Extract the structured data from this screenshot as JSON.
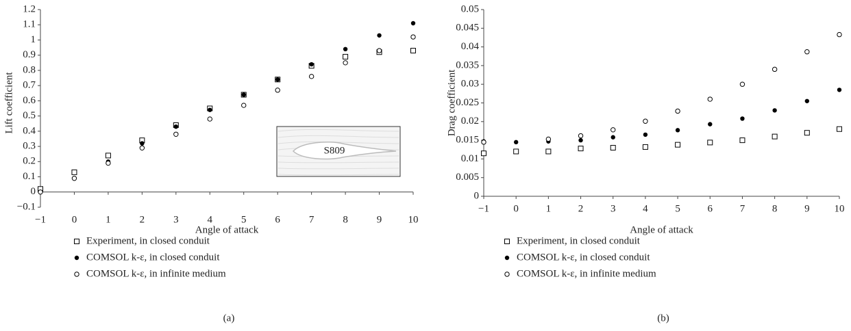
{
  "chart_data": [
    {
      "type": "scatter",
      "label": "(a)",
      "xlabel": "Angle of attack",
      "ylabel": "Lift coefficient",
      "annotation": "S809",
      "x": [
        -1,
        0,
        1,
        2,
        3,
        4,
        5,
        6,
        7,
        8,
        9,
        10
      ],
      "xlim": [
        -1,
        10
      ],
      "xticks": [
        {
          "value": -1,
          "label": "−1"
        },
        0,
        1,
        2,
        3,
        4,
        5,
        6,
        7,
        8,
        9,
        10
      ],
      "ylim": [
        -0.1,
        1.2
      ],
      "yticks": [
        {
          "value": -0.1,
          "label": "−0.1"
        },
        0,
        0.1,
        0.2,
        0.3,
        0.4,
        0.5,
        0.6,
        0.7,
        0.8,
        0.9,
        1,
        1.1,
        1.2
      ],
      "series": [
        {
          "name": "Experiment, in closed conduit",
          "color": "#000",
          "marker": "square",
          "values": [
            0.02,
            0.13,
            0.24,
            0.34,
            0.44,
            0.55,
            0.64,
            0.74,
            0.83,
            0.89,
            0.92,
            0.93
          ]
        },
        {
          "name": "COMSOL k-ε, in closed conduit",
          "color": "#000",
          "marker": "filled-circle",
          "values": [
            0.0,
            0.09,
            0.2,
            0.32,
            0.43,
            0.54,
            0.64,
            0.74,
            0.84,
            0.94,
            1.03,
            1.11
          ]
        },
        {
          "name": "COMSOL k-ε, in infinite medium",
          "color": "#000",
          "marker": "open-circle",
          "values": [
            0.0,
            0.09,
            0.19,
            0.29,
            0.38,
            0.48,
            0.57,
            0.67,
            0.76,
            0.85,
            0.93,
            1.02
          ]
        }
      ]
    },
    {
      "type": "scatter",
      "label": "(b)",
      "xlabel": "Angle of attack",
      "ylabel": "Drag coefficient",
      "x": [
        -1,
        0,
        1,
        2,
        3,
        4,
        5,
        6,
        7,
        8,
        9,
        10
      ],
      "xlim": [
        -1,
        10
      ],
      "xticks": [
        {
          "value": -1,
          "label": "−1"
        },
        0,
        1,
        2,
        3,
        4,
        5,
        6,
        7,
        8,
        9,
        10
      ],
      "ylim": [
        0,
        0.05
      ],
      "yticks": [
        0,
        0.005,
        0.01,
        0.015,
        0.02,
        0.025,
        0.03,
        0.035,
        0.04,
        0.045,
        0.05
      ],
      "series": [
        {
          "name": "Experiment, in closed conduit",
          "color": "#000",
          "marker": "square",
          "values": [
            0.0115,
            0.012,
            0.012,
            0.0128,
            0.013,
            0.0132,
            0.0138,
            0.0144,
            0.015,
            0.016,
            0.017,
            0.018
          ]
        },
        {
          "name": "COMSOL k-ε, in closed conduit",
          "color": "#000",
          "marker": "filled-circle",
          "values": [
            0.0147,
            0.0145,
            0.0147,
            0.015,
            0.0158,
            0.0165,
            0.0177,
            0.0193,
            0.0208,
            0.023,
            0.0255,
            0.0285
          ]
        },
        {
          "name": "COMSOL k-ε, in infinite medium",
          "color": "#000",
          "marker": "open-circle",
          "values": [
            0.0145,
            null,
            0.0153,
            0.0162,
            0.0178,
            0.0201,
            0.0228,
            0.026,
            0.03,
            0.034,
            0.0387,
            0.0433
          ]
        }
      ]
    }
  ]
}
